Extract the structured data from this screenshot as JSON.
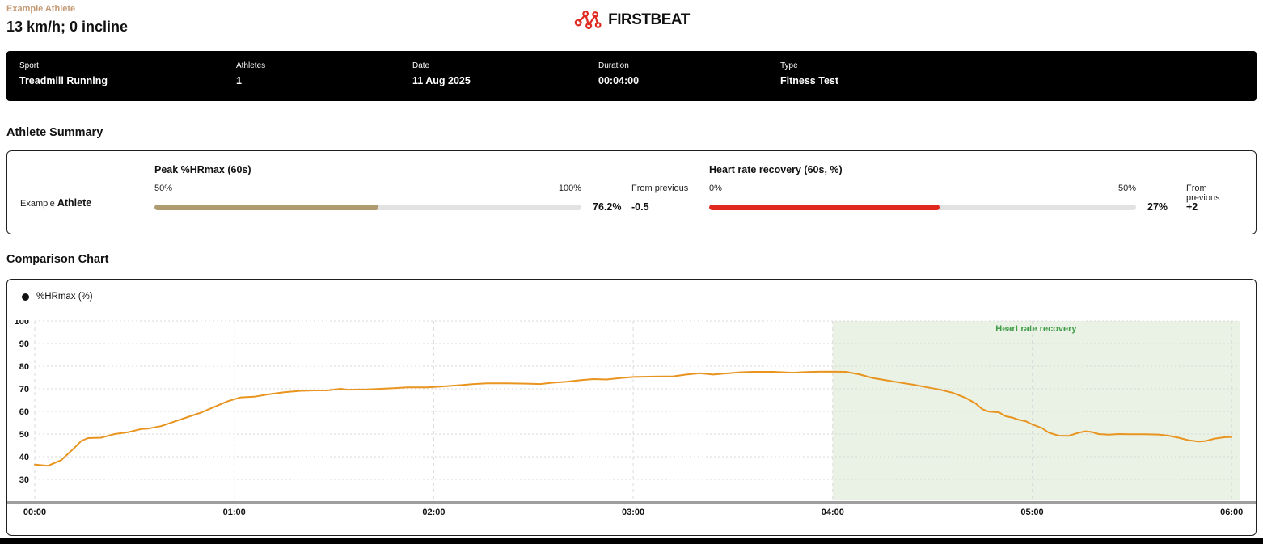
{
  "header": {
    "athlete_label": "Example Athlete",
    "title": "13 km/h; 0 incline",
    "brand": "FIRSTBEAT"
  },
  "info_bar": {
    "items": [
      {
        "label": "Sport",
        "value": "Treadmill Running"
      },
      {
        "label": "Athletes",
        "value": "1"
      },
      {
        "label": "Date",
        "value": "11 Aug 2025"
      },
      {
        "label": "Duration",
        "value": "00:04:00"
      },
      {
        "label": "Type",
        "value": "Fitness Test"
      }
    ]
  },
  "athlete_summary": {
    "heading": "Athlete Summary",
    "row": {
      "name_prefix": "Example",
      "name": "Athlete",
      "metrics": [
        {
          "title": "Peak %HRmax (60s)",
          "scale_min": "50%",
          "scale_max": "100%",
          "value": "76.2%",
          "from_previous_label": "From previous",
          "from_previous": "-0.5",
          "fill_pct": 52.4,
          "color": "#AE9B70"
        },
        {
          "title": "Heart rate recovery (60s, %)",
          "scale_min": "0%",
          "scale_max": "50%",
          "value": "27%",
          "from_previous_label": "From previous",
          "from_previous": "+2",
          "fill_pct": 54,
          "color": "#E0281E"
        }
      ]
    }
  },
  "comparison_chart": {
    "heading": "Comparison Chart"
  },
  "chart_data": {
    "type": "line",
    "title": "Comparison Chart",
    "series_name": "%HRmax (%)",
    "x_unit": "mm:ss",
    "x_ticks": [
      "00:00",
      "01:00",
      "02:00",
      "03:00",
      "04:00",
      "05:00",
      "06:00"
    ],
    "y_ticks": [
      100,
      90,
      80,
      70,
      60,
      50,
      40,
      30
    ],
    "ylim": [
      20.4,
      100
    ],
    "xlim_seconds": [
      0,
      360
    ],
    "grid": true,
    "legend_position": "top-left",
    "line_color": "#E8941F",
    "recovery_region": {
      "start_seconds": 240,
      "end_seconds": 360,
      "label": "Heart rate recovery",
      "color": "#EAF2E5",
      "label_color": "#3E9C47"
    },
    "points": [
      [
        0,
        36.5
      ],
      [
        4,
        36.0
      ],
      [
        8,
        38.5
      ],
      [
        12,
        44.0
      ],
      [
        14,
        47.0
      ],
      [
        16,
        48.2
      ],
      [
        20,
        48.4
      ],
      [
        24,
        50.0
      ],
      [
        28,
        50.8
      ],
      [
        32,
        52.2
      ],
      [
        34,
        52.4
      ],
      [
        38,
        53.5
      ],
      [
        42,
        55.5
      ],
      [
        46,
        57.5
      ],
      [
        50,
        59.5
      ],
      [
        54,
        62.0
      ],
      [
        58,
        64.5
      ],
      [
        62,
        66.2
      ],
      [
        66,
        66.5
      ],
      [
        70,
        67.5
      ],
      [
        75,
        68.5
      ],
      [
        80,
        69.1
      ],
      [
        84,
        69.3
      ],
      [
        88,
        69.3
      ],
      [
        92,
        70.0
      ],
      [
        94,
        69.6
      ],
      [
        100,
        69.7
      ],
      [
        104,
        70.0
      ],
      [
        108,
        70.3
      ],
      [
        112,
        70.6
      ],
      [
        118,
        70.6
      ],
      [
        122,
        71.0
      ],
      [
        128,
        71.6
      ],
      [
        132,
        72.1
      ],
      [
        136,
        72.4
      ],
      [
        142,
        72.4
      ],
      [
        148,
        72.3
      ],
      [
        152,
        72.1
      ],
      [
        156,
        72.7
      ],
      [
        160,
        73.1
      ],
      [
        164,
        73.8
      ],
      [
        168,
        74.3
      ],
      [
        172,
        74.1
      ],
      [
        176,
        74.7
      ],
      [
        180,
        75.2
      ],
      [
        186,
        75.4
      ],
      [
        192,
        75.5
      ],
      [
        196,
        76.3
      ],
      [
        200,
        76.9
      ],
      [
        204,
        76.3
      ],
      [
        208,
        76.8
      ],
      [
        212,
        77.3
      ],
      [
        216,
        77.5
      ],
      [
        222,
        77.5
      ],
      [
        228,
        77.1
      ],
      [
        232,
        77.4
      ],
      [
        238,
        77.6
      ],
      [
        244,
        77.5
      ],
      [
        248,
        76.4
      ],
      [
        252,
        74.8
      ],
      [
        256,
        73.8
      ],
      [
        260,
        72.8
      ],
      [
        264,
        71.9
      ],
      [
        268,
        70.8
      ],
      [
        272,
        69.7
      ],
      [
        276,
        68.3
      ],
      [
        280,
        66.0
      ],
      [
        283,
        63.5
      ],
      [
        285,
        61.0
      ],
      [
        287,
        59.9
      ],
      [
        290,
        59.6
      ],
      [
        292,
        57.9
      ],
      [
        294,
        57.3
      ],
      [
        296,
        56.3
      ],
      [
        298,
        55.7
      ],
      [
        300,
        54.3
      ],
      [
        303,
        52.6
      ],
      [
        305,
        50.6
      ],
      [
        308,
        49.3
      ],
      [
        311,
        49.2
      ],
      [
        314,
        50.6
      ],
      [
        316,
        51.2
      ],
      [
        318,
        50.9
      ],
      [
        320,
        50.0
      ],
      [
        323,
        49.7
      ],
      [
        326,
        50.0
      ],
      [
        330,
        49.9
      ],
      [
        334,
        49.9
      ],
      [
        338,
        49.8
      ],
      [
        341,
        49.3
      ],
      [
        344,
        48.4
      ],
      [
        347,
        47.3
      ],
      [
        350,
        46.7
      ],
      [
        352,
        46.9
      ],
      [
        355,
        48.0
      ],
      [
        358,
        48.6
      ],
      [
        360,
        48.7
      ]
    ]
  }
}
